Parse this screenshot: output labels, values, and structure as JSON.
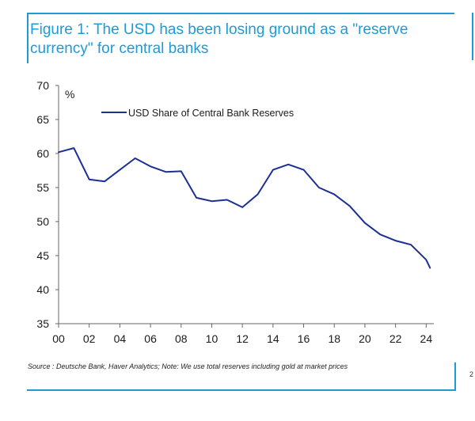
{
  "title": "Figure 1: The USD has been losing ground as a \"reserve currency\" for central banks",
  "source": "Source : Deutsche Bank, Haver Analytics; Note: We use total reserves including gold at market prices",
  "edge_mark": "2",
  "colors": {
    "accent": "#1e9bd7",
    "series": "#1c2f95"
  },
  "chart_data": {
    "type": "line",
    "title": "",
    "xlabel": "",
    "ylabel": "%",
    "ylim": [
      35,
      70
    ],
    "xlim": [
      2000,
      2024.5
    ],
    "yticks": [
      35,
      40,
      45,
      50,
      55,
      60,
      65,
      70
    ],
    "ytick_labels": [
      "35",
      "40",
      "45",
      "50",
      "55",
      "60",
      "65",
      "70"
    ],
    "xticks": [
      2000,
      2002,
      2004,
      2006,
      2008,
      2010,
      2012,
      2014,
      2016,
      2018,
      2020,
      2022,
      2024
    ],
    "xtick_labels": [
      "00",
      "02",
      "04",
      "06",
      "08",
      "10",
      "12",
      "14",
      "16",
      "18",
      "20",
      "22",
      "24"
    ],
    "grid": false,
    "legend_position": "top-left",
    "series": [
      {
        "name": "USD Share of Central Bank Reserves",
        "x": [
          2000,
          2001,
          2002,
          2003,
          2004,
          2005,
          2006,
          2007,
          2008,
          2009,
          2010,
          2011,
          2012,
          2013,
          2014,
          2015,
          2016,
          2017,
          2018,
          2019,
          2020,
          2021,
          2022,
          2023,
          2024,
          2024.25
        ],
        "values": [
          60.2,
          60.8,
          56.2,
          55.9,
          57.6,
          59.3,
          58.1,
          57.3,
          57.4,
          53.5,
          53.0,
          53.2,
          52.1,
          54.0,
          57.6,
          58.4,
          57.6,
          55.0,
          54.0,
          52.3,
          49.8,
          48.1,
          47.2,
          46.6,
          44.4,
          43.2
        ]
      }
    ]
  }
}
